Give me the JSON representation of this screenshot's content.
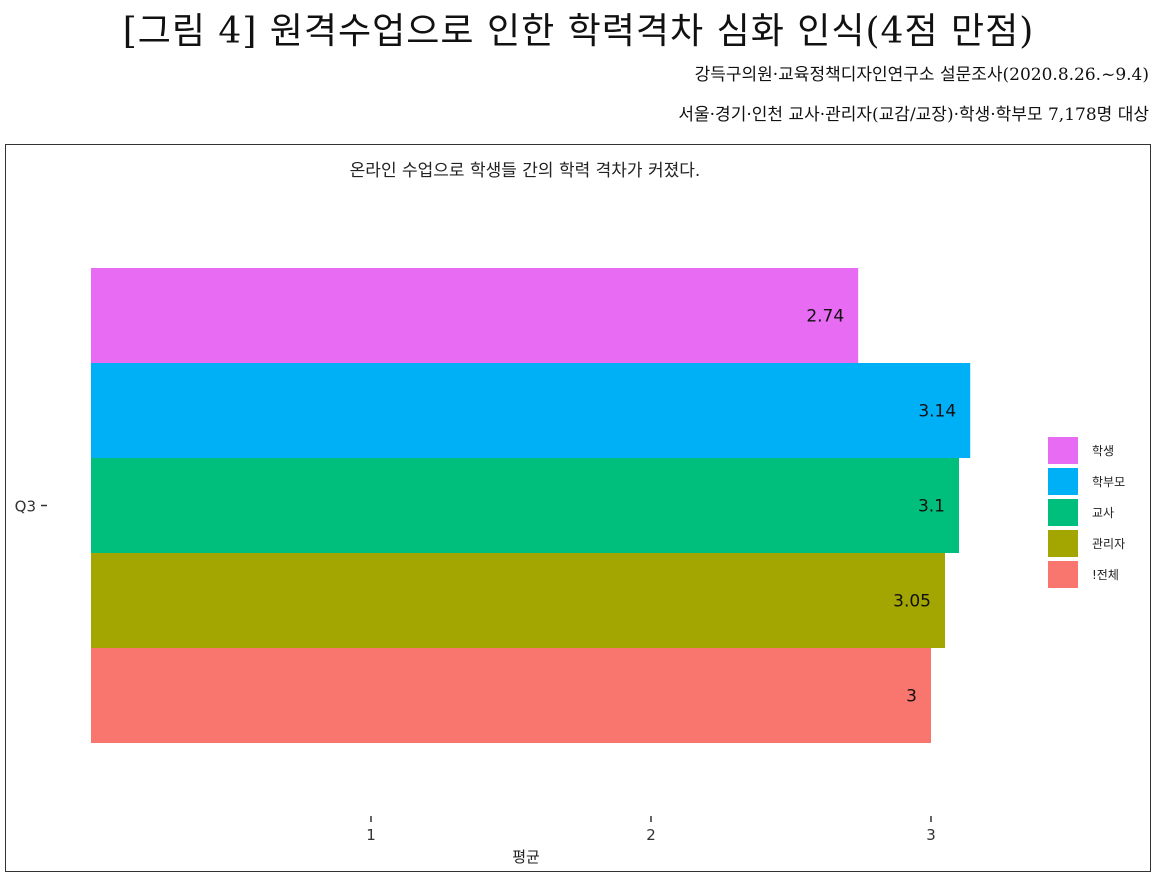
{
  "figure": {
    "title": "[그림 4] 원격수업으로 인한 학력격차 심화 인식(4점 만점)",
    "source_line1": "강득구의원·교육정책디자인연구소 설문조사(2020.8.26.~9.4)",
    "source_line2": "서울·경기·인천 교사·관리자(교감/교장)·학생·학부모 7,178명 대상"
  },
  "chart_data": {
    "type": "bar",
    "orientation": "horizontal",
    "title": "온라인 수업으로 학생들 간의 학력 격차가 커졌다.",
    "xlabel": "평균",
    "ylabel": "",
    "categories": [
      "Q3"
    ],
    "x_ticks": [
      1,
      2,
      3
    ],
    "xlim": [
      0,
      3.14
    ],
    "series": [
      {
        "name": "학생",
        "values": [
          2.74
        ],
        "label": "2.74",
        "color": "#E76BF3"
      },
      {
        "name": "학부모",
        "values": [
          3.14
        ],
        "label": "3.14",
        "color": "#00B0F6"
      },
      {
        "name": "교사",
        "values": [
          3.1
        ],
        "label": "3.1",
        "color": "#00BF7D"
      },
      {
        "name": "관리자",
        "values": [
          3.05
        ],
        "label": "3.05",
        "color": "#A3A500"
      },
      {
        "name": "!전체",
        "values": [
          3
        ],
        "label": "3",
        "color": "#F8766D"
      }
    ],
    "legend_position": "right",
    "grid": false
  }
}
